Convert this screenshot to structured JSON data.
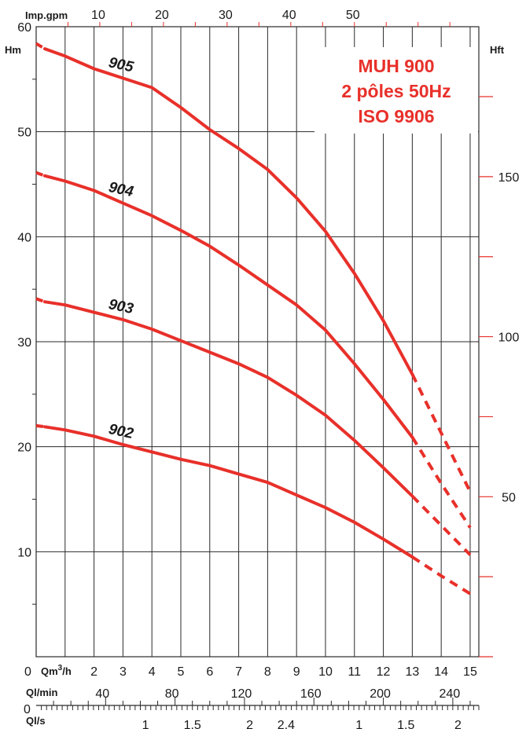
{
  "chart_data": {
    "type": "line",
    "title": [
      "MUH 900",
      "2 pôles 50Hz",
      "ISO 9906"
    ],
    "title_color": "#e8302a",
    "line_color": "#e8302a",
    "grid": true,
    "axes": {
      "x_bottom": {
        "unit_label": "Qm",
        "unit_sup": "3",
        "unit_suffix": "/h",
        "range": [
          0,
          15.3
        ],
        "major_ticks": [
          1,
          2,
          3,
          4,
          5,
          6,
          7,
          8,
          9,
          10,
          11,
          12,
          13,
          14,
          15
        ],
        "tick_labels": [
          "2",
          "3",
          "4",
          "5",
          "6",
          "7",
          "8",
          "9",
          "10",
          "11",
          "12",
          "13",
          "14",
          "15"
        ]
      },
      "origin_label": "0",
      "x_top": {
        "unit_label": "Imp.gpm",
        "tick_labels": [
          "10",
          "20",
          "30",
          "40",
          "50"
        ],
        "tick_values": [
          10,
          20,
          30,
          40,
          50
        ]
      },
      "x_lmin": {
        "unit_label": "Ql/min",
        "tick_labels": [
          "40",
          "80",
          "120",
          "160",
          "200",
          "240"
        ],
        "tick_values": [
          40,
          80,
          120,
          160,
          200,
          240
        ]
      },
      "x_ls": {
        "unit_label": "Ql/s",
        "origin_label": "0",
        "tick_labels": [
          "1",
          "1.5",
          "2",
          "2.4",
          "1",
          "1.5",
          "2"
        ]
      },
      "y_left": {
        "unit_label": "Hm",
        "range": [
          0,
          60
        ],
        "tick_labels": [
          "10",
          "20",
          "30",
          "40",
          "50",
          "60"
        ],
        "tick_values": [
          10,
          20,
          30,
          40,
          50,
          60
        ]
      },
      "y_right": {
        "unit_label": "Hft",
        "tick_labels": [
          "50",
          "100",
          "150"
        ],
        "tick_values": [
          50,
          100,
          150
        ]
      }
    },
    "series": [
      {
        "name": "905",
        "solid": [
          [
            0.3,
            57.9
          ],
          [
            1,
            57.2
          ],
          [
            2,
            56.0
          ],
          [
            3,
            55.1
          ],
          [
            4,
            54.2
          ],
          [
            5,
            52.3
          ],
          [
            6,
            50.2
          ],
          [
            7,
            48.4
          ],
          [
            8,
            46.4
          ],
          [
            9,
            43.7
          ],
          [
            10,
            40.5
          ],
          [
            11,
            36.5
          ],
          [
            12,
            32.0
          ],
          [
            13,
            26.9
          ]
        ],
        "dash_start": [
          [
            0,
            58.4
          ],
          [
            0.3,
            57.9
          ]
        ],
        "dash_end": [
          [
            13,
            26.9
          ],
          [
            14,
            21.3
          ],
          [
            15,
            15.7
          ]
        ]
      },
      {
        "name": "904",
        "solid": [
          [
            0.3,
            45.8
          ],
          [
            1,
            45.3
          ],
          [
            2,
            44.4
          ],
          [
            3,
            43.2
          ],
          [
            4,
            42.0
          ],
          [
            5,
            40.6
          ],
          [
            6,
            39.1
          ],
          [
            7,
            37.3
          ],
          [
            8,
            35.4
          ],
          [
            9,
            33.5
          ],
          [
            10,
            31.1
          ],
          [
            11,
            27.9
          ],
          [
            12,
            24.5
          ],
          [
            13,
            20.9
          ]
        ],
        "dash_start": [
          [
            0,
            46.1
          ],
          [
            0.3,
            45.8
          ]
        ],
        "dash_end": [
          [
            13,
            20.9
          ],
          [
            14,
            16.5
          ],
          [
            15,
            12.3
          ]
        ]
      },
      {
        "name": "903",
        "solid": [
          [
            0.3,
            33.8
          ],
          [
            1,
            33.5
          ],
          [
            2,
            32.8
          ],
          [
            3,
            32.1
          ],
          [
            4,
            31.2
          ],
          [
            5,
            30.1
          ],
          [
            6,
            29.0
          ],
          [
            7,
            27.9
          ],
          [
            8,
            26.6
          ],
          [
            9,
            24.9
          ],
          [
            10,
            23.0
          ],
          [
            11,
            20.6
          ],
          [
            12,
            18.0
          ],
          [
            13,
            15.3
          ]
        ],
        "dash_start": [
          [
            0,
            34.1
          ],
          [
            0.3,
            33.8
          ]
        ],
        "dash_end": [
          [
            13,
            15.3
          ],
          [
            14,
            12.5
          ],
          [
            15,
            9.7
          ]
        ]
      },
      {
        "name": "902",
        "solid": [
          [
            0.3,
            21.9
          ],
          [
            1,
            21.6
          ],
          [
            2,
            21.0
          ],
          [
            3,
            20.2
          ],
          [
            4,
            19.5
          ],
          [
            5,
            18.8
          ],
          [
            6,
            18.2
          ],
          [
            7,
            17.4
          ],
          [
            8,
            16.6
          ],
          [
            9,
            15.4
          ],
          [
            10,
            14.2
          ],
          [
            11,
            12.8
          ],
          [
            12,
            11.2
          ],
          [
            13,
            9.5
          ]
        ],
        "dash_start": [
          [
            0,
            22.0
          ],
          [
            0.3,
            21.9
          ]
        ],
        "dash_end": [
          [
            13,
            9.5
          ],
          [
            14,
            7.7
          ],
          [
            15,
            6.0
          ]
        ]
      }
    ]
  }
}
